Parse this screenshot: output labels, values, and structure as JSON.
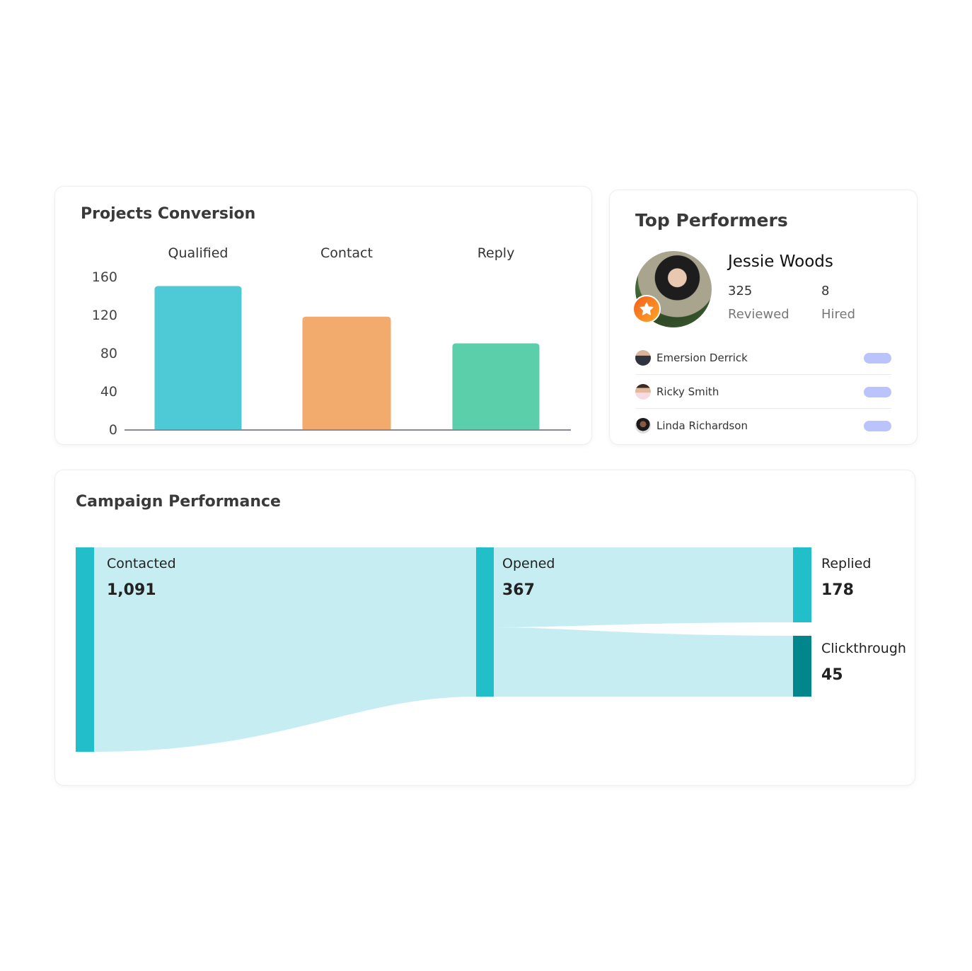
{
  "projects_conversion": {
    "title": "Projects Conversion"
  },
  "chart_data": {
    "type": "bar",
    "title": "Projects Conversion",
    "categories": [
      "Qualified",
      "Contact",
      "Reply"
    ],
    "values": [
      150,
      118,
      90
    ],
    "colors": [
      "#4ecad6",
      "#f2aa6d",
      "#5bceaa"
    ],
    "yticks": [
      "0",
      "40",
      "80",
      "120",
      "160"
    ],
    "ylim": [
      0,
      160
    ],
    "grid": false,
    "xlabel": "",
    "ylabel": ""
  },
  "top_performers": {
    "title": "Top Performers",
    "featured": {
      "name": "Jessie Woods",
      "reviewed_value": "325",
      "reviewed_label": "Reviewed",
      "hired_value": "8",
      "hired_label": "Hired",
      "badge_icon": "star-icon",
      "badge_color": "#f7811c"
    },
    "list": [
      {
        "name": "Emersion Derrick"
      },
      {
        "name": "Ricky Smith"
      },
      {
        "name": "Linda Richardson"
      }
    ]
  },
  "campaign": {
    "title": "Campaign Performance",
    "nodes": [
      {
        "label": "Contacted",
        "value": "1,091",
        "color": "#22bfcb"
      },
      {
        "label": "Opened",
        "value": "367",
        "color": "#22bfcb"
      },
      {
        "label": "Replied",
        "value": "178",
        "color": "#22bfcb"
      },
      {
        "label": "Clickthrough",
        "value": "45",
        "color": "#00868b"
      }
    ],
    "flow_color": "#c6edf2"
  }
}
